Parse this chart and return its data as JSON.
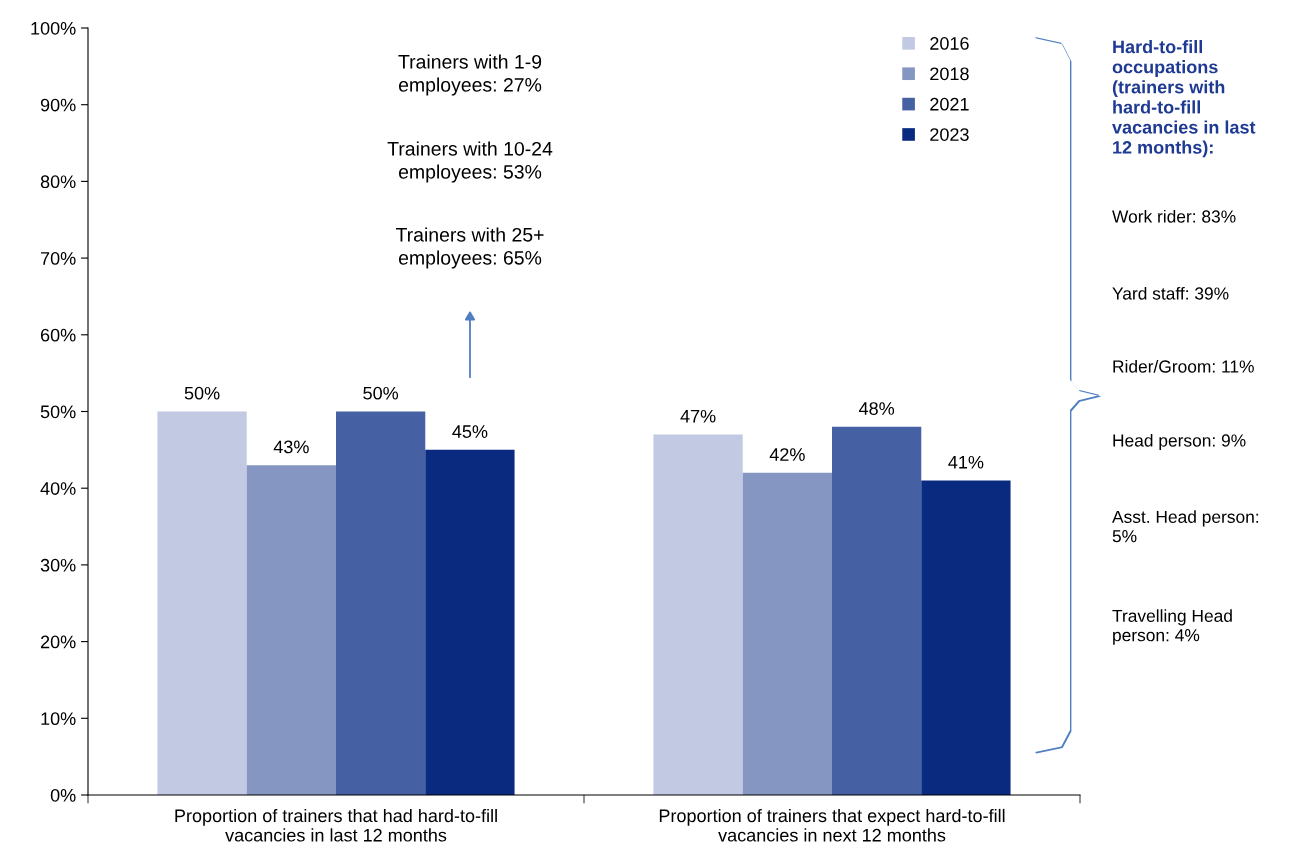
{
  "chart_data": {
    "type": "bar",
    "categories": [
      "Proportion of trainers that had hard-to-fill\nvacancies in last 12 months",
      "Proportion of trainers that expect hard-to-fill\nvacancies in next 12 months"
    ],
    "series": [
      {
        "name": "2016",
        "color": "#c2c9e2",
        "values": [
          50,
          47
        ],
        "value_labels": [
          "50%",
          "47%"
        ]
      },
      {
        "name": "2018",
        "color": "#8596c2",
        "values": [
          43,
          42
        ],
        "value_labels": [
          "43%",
          "42%"
        ]
      },
      {
        "name": "2021",
        "color": "#4560a3",
        "values": [
          50,
          48
        ],
        "value_labels": [
          "50%",
          "48%"
        ]
      },
      {
        "name": "2023",
        "color": "#0a2a80",
        "values": [
          45,
          41
        ],
        "value_labels": [
          "45%",
          "41%"
        ]
      }
    ],
    "ylim": [
      0,
      100
    ],
    "yticks": [
      {
        "value": 0,
        "label": "0%"
      },
      {
        "value": 10,
        "label": "10%"
      },
      {
        "value": 20,
        "label": "20%"
      },
      {
        "value": 30,
        "label": "30%"
      },
      {
        "value": 40,
        "label": "40%"
      },
      {
        "value": 50,
        "label": "50%"
      },
      {
        "value": 60,
        "label": "60%"
      },
      {
        "value": 70,
        "label": "70%"
      },
      {
        "value": 80,
        "label": "80%"
      },
      {
        "value": 90,
        "label": "90%"
      },
      {
        "value": 100,
        "label": "100%"
      }
    ],
    "grid": false,
    "legend": "top right",
    "annotations": [
      "Trainers with 1-9\nemployees: 27%",
      "Trainers with 10-24\nemployees: 53%",
      "Trainers with 25+\nemployees: 65%",
      "Hard-to-fill\noccupations\n(trainers with\nhard-to-fill\nvacancies in last\n12 months):",
      "Work rider: 83%",
      "Yard staff: 39%",
      "Rider/Groom: 11%",
      "Head person: 9%",
      "Asst. Head person:\n5%",
      "Travelling Head\nperson: 4%"
    ]
  }
}
